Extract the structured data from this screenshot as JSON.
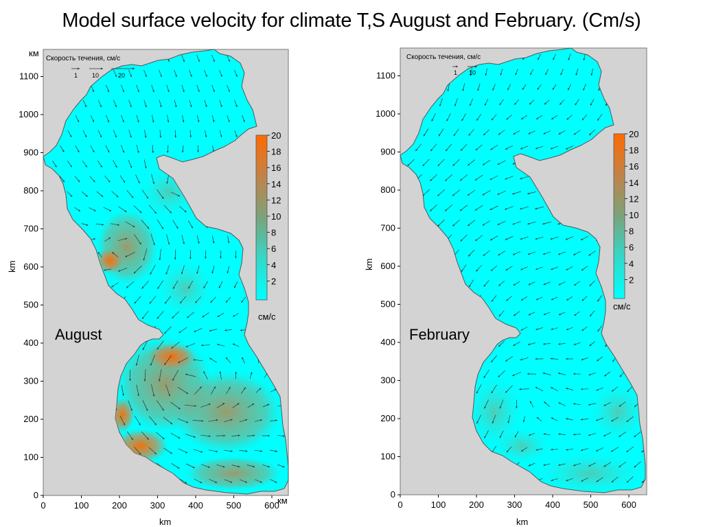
{
  "title": "Model surface velocity for climate T,S August and February. (Cm/s)",
  "colors": {
    "land": "#d3d3d3",
    "water_low": "#00ffff",
    "water_high": "#ff6a00",
    "coast": "#555555",
    "arrow": "#333333"
  },
  "axis": {
    "km_corner_top": "км",
    "km_corner_right": "км",
    "ylabel": "km",
    "xlabel": "km",
    "x_ticks": [
      "0",
      "100",
      "200",
      "300",
      "400",
      "500",
      "600"
    ],
    "y_ticks": [
      "0",
      "100",
      "200",
      "300",
      "400",
      "500",
      "600",
      "700",
      "800",
      "900",
      "1000",
      "1100"
    ]
  },
  "left_panel": {
    "season": "August",
    "legend_title": "Скорость течения, см/с",
    "legend_scale": [
      "1",
      "10",
      "20"
    ],
    "colorbar_ticks": [
      "20",
      "18",
      "16",
      "14",
      "12",
      "10",
      "8",
      "6",
      "4",
      "2"
    ],
    "colorbar_unit": "см/с"
  },
  "right_panel": {
    "season": "February",
    "legend_title": "Скорость течения, см/с",
    "legend_scale": [
      "1",
      "10"
    ],
    "colorbar_ticks": [
      "20",
      "18",
      "16",
      "14",
      "12",
      "10",
      "8",
      "6",
      "4",
      "2"
    ],
    "colorbar_unit": "см/с"
  }
}
